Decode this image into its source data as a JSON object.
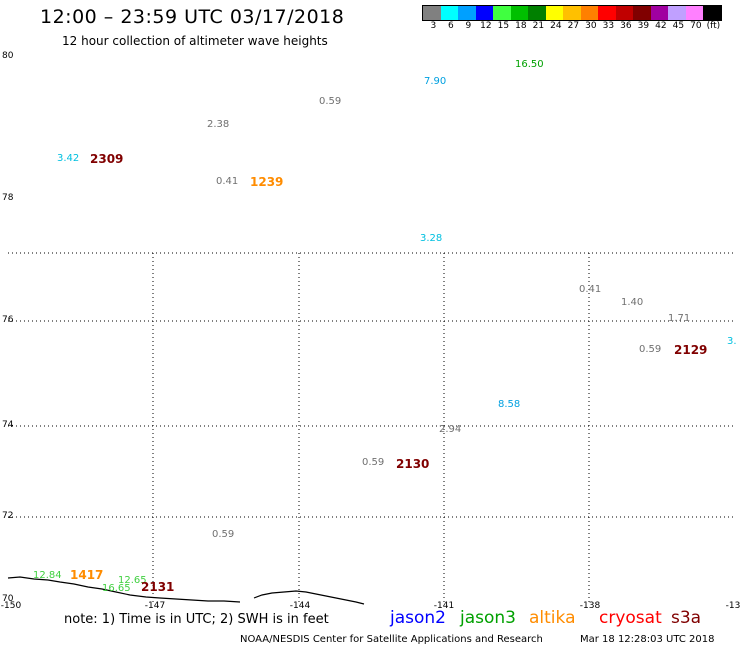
{
  "header": {
    "title": "12:00 – 23:59 UTC 03/17/2018",
    "subtitle": "12 hour collection of altimeter wave heights"
  },
  "legend": {
    "unit": "(ft)",
    "bins": [
      {
        "label": "3",
        "color": "#808080"
      },
      {
        "label": "6",
        "color": "#00ffff"
      },
      {
        "label": "9",
        "color": "#00a0ff"
      },
      {
        "label": "12",
        "color": "#0000ff"
      },
      {
        "label": "15",
        "color": "#40ff40"
      },
      {
        "label": "18",
        "color": "#00c000"
      },
      {
        "label": "21",
        "color": "#008000"
      },
      {
        "label": "24",
        "color": "#ffff00"
      },
      {
        "label": "27",
        "color": "#ffc000"
      },
      {
        "label": "30",
        "color": "#ff8000"
      },
      {
        "label": "33",
        "color": "#ff0000"
      },
      {
        "label": "36",
        "color": "#c00000"
      },
      {
        "label": "39",
        "color": "#800000"
      },
      {
        "label": "42",
        "color": "#a000a0"
      },
      {
        "label": "45",
        "color": "#c0a0ff"
      },
      {
        "label": "70",
        "color": "#ff80ff"
      },
      {
        "label": "",
        "color": "#000000"
      }
    ]
  },
  "axes": {
    "y_ticks": [
      "80",
      "78",
      "76",
      "74",
      "72",
      "70"
    ],
    "x_ticks": [
      "-150",
      "-147",
      "-144",
      "-141",
      "-138",
      "-13"
    ]
  },
  "observations": [
    {
      "text": "16.50",
      "color": "#00a000"
    },
    {
      "text": "7.90",
      "color": "#00a0e0"
    },
    {
      "text": "0.59",
      "color": "#707070"
    },
    {
      "text": "2.38",
      "color": "#707070"
    },
    {
      "text": "3.42",
      "color": "#00c0e0"
    },
    {
      "text": "0.41",
      "color": "#707070"
    },
    {
      "text": "3.28",
      "color": "#00c0e0"
    },
    {
      "text": "0.41",
      "color": "#707070"
    },
    {
      "text": "1.40",
      "color": "#707070"
    },
    {
      "text": "1.71",
      "color": "#707070"
    },
    {
      "text": "0.59",
      "color": "#707070"
    },
    {
      "text": "3.",
      "color": "#00c0e0"
    },
    {
      "text": "8.58",
      "color": "#00a0e0"
    },
    {
      "text": "2.94",
      "color": "#707070"
    },
    {
      "text": "0.59",
      "color": "#707070"
    },
    {
      "text": "0.59",
      "color": "#707070"
    },
    {
      "text": "12.84",
      "color": "#40d040"
    },
    {
      "text": "12.65",
      "color": "#40d040"
    },
    {
      "text": "16.65",
      "color": "#40d040"
    }
  ],
  "pass_times": [
    {
      "text": "2309",
      "color": "#800000"
    },
    {
      "text": "1239",
      "color": "#ff8c00"
    },
    {
      "text": "2129",
      "color": "#800000"
    },
    {
      "text": "2130",
      "color": "#800000"
    },
    {
      "text": "1417",
      "color": "#ff8c00"
    },
    {
      "text": "2131",
      "color": "#800000"
    }
  ],
  "footer": {
    "note": "note: 1) Time is in UTC; 2) SWH is in feet",
    "satellites": [
      {
        "name": "jason2",
        "color": "#0000ff"
      },
      {
        "name": "jason3",
        "color": "#00a000"
      },
      {
        "name": "altika",
        "color": "#ff8c00"
      },
      {
        "name": "cryosat",
        "color": "#ff0000"
      },
      {
        "name": "s3a",
        "color": "#800000"
      }
    ],
    "credit": "NOAA/NESDIS Center for Satellite Applications and Research",
    "timestamp": "Mar 18 12:28:03 UTC 2018"
  }
}
